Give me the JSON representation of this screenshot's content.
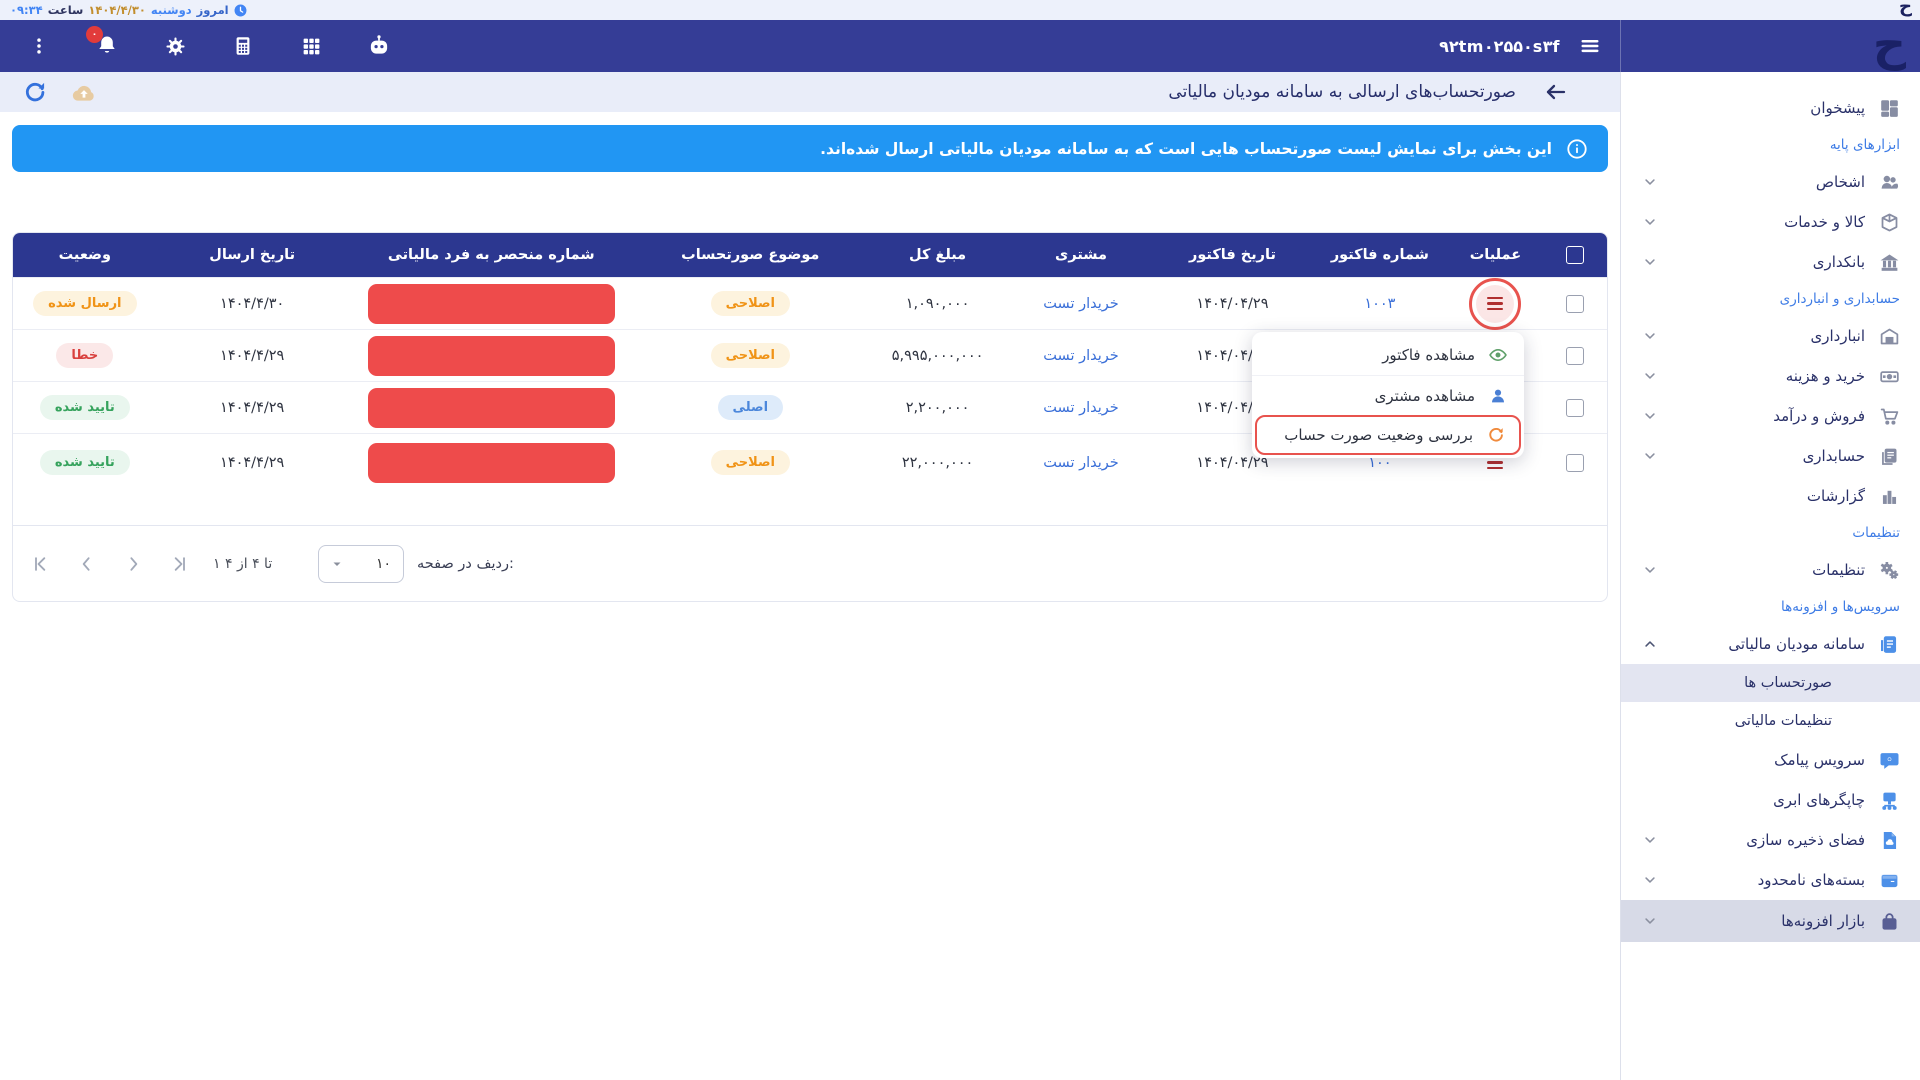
{
  "topstrip": {
    "today_label": "امروز",
    "weekday": "دوشنبه",
    "date": "۱۴۰۴/۴/۳۰",
    "hour_label": "ساعت",
    "time": "۰۹:۳۴"
  },
  "brand": {
    "logo_glyph": "ح"
  },
  "navbar": {
    "account_id": "۹۲tm۰۲۵۵۰s۳f",
    "notifications_badge": "۰"
  },
  "page": {
    "title": "صورتحساب‌های ارسالی به سامانه مودیان مالیاتی",
    "banner_text": "این بخش برای نمایش لیست صورتحساب هایی است که به سامانه مودیان مالیاتی ارسال شده‌اند."
  },
  "table": {
    "columns": [
      "عملیات",
      "شماره فاکتور",
      "تاریخ فاکتور",
      "مشتری",
      "مبلغ کل",
      "موضوع صورتحساب",
      "شماره منحصر به فرد مالیاتی",
      "تاریخ ارسال",
      "وضعیت"
    ],
    "rows": [
      {
        "invoice_no": "۱۰۰۳",
        "invoice_date": "۱۴۰۴/۰۴/۲۹",
        "customer": "خریدار تست",
        "total": "۱,۰۹۰,۰۰۰",
        "subject": {
          "label": "اصلاحی",
          "kind": "warn"
        },
        "tax_uid_redacted": true,
        "send_date": "۱۴۰۴/۴/۳۰",
        "status": {
          "label": "ارسال شده",
          "kind": "warn"
        },
        "ops": "circled"
      },
      {
        "invoice_no": "",
        "invoice_date": "۱۴۰۴/۰۴/۲۹",
        "customer": "خریدار تست",
        "total": "۵,۹۹۵,۰۰۰,۰۰۰",
        "subject": {
          "label": "اصلاحی",
          "kind": "warn"
        },
        "tax_uid_redacted": true,
        "send_date": "۱۴۰۴/۴/۲۹",
        "status": {
          "label": "خطا",
          "kind": "error"
        },
        "ops": "plain"
      },
      {
        "invoice_no": "",
        "invoice_date": "۱۴۰۴/۰۴/۲۹",
        "customer": "خریدار تست",
        "total": "۲,۲۰۰,۰۰۰",
        "subject": {
          "label": "اصلی",
          "kind": "info"
        },
        "tax_uid_redacted": true,
        "send_date": "۱۴۰۴/۴/۲۹",
        "status": {
          "label": "تایید شده",
          "kind": "success"
        },
        "ops": "plain"
      },
      {
        "invoice_no": "۱۰۰",
        "invoice_date": "۱۴۰۴/۰۴/۲۹",
        "customer": "خریدار تست",
        "total": "۲۲,۰۰۰,۰۰۰",
        "subject": {
          "label": "اصلاحی",
          "kind": "warn"
        },
        "tax_uid_redacted": true,
        "send_date": "۱۴۰۴/۴/۲۹",
        "status": {
          "label": "تایید شده",
          "kind": "success"
        },
        "ops": "plain",
        "tall": true
      }
    ]
  },
  "context_menu": {
    "items": [
      {
        "label": "مشاهده فاکتور",
        "icon": "eye"
      },
      {
        "label": "مشاهده مشتری",
        "icon": "person"
      },
      {
        "label": "بررسی وضعیت صورت حساب",
        "icon": "refresh-orange",
        "highlighted": true
      }
    ]
  },
  "pagination": {
    "rows_per_page_label": "ردیف در صفحه:",
    "rows_per_page": "۱۰",
    "range_text": "۱ تا ۴ از ۴"
  },
  "sidebar": {
    "items": [
      {
        "type": "item",
        "label": "پیشخوان",
        "icon": "dashboard",
        "chevron": false,
        "tone": "gray"
      },
      {
        "type": "section",
        "label": "ابزارهای پایه"
      },
      {
        "type": "item",
        "label": "اشخاص",
        "icon": "people",
        "chevron": "down",
        "tone": "gray"
      },
      {
        "type": "item",
        "label": "کالا و خدمات",
        "icon": "box",
        "chevron": "down",
        "tone": "gray"
      },
      {
        "type": "item",
        "label": "بانکداری",
        "icon": "bank",
        "chevron": "down",
        "tone": "gray"
      },
      {
        "type": "section",
        "label": "حسابداری و انبارداری"
      },
      {
        "type": "item",
        "label": "انبارداری",
        "icon": "warehouse",
        "chevron": "down",
        "tone": "gray"
      },
      {
        "type": "item",
        "label": "خرید و هزینه",
        "icon": "purchase",
        "chevron": "down",
        "tone": "gray"
      },
      {
        "type": "item",
        "label": "فروش و درآمد",
        "icon": "cart",
        "chevron": "down",
        "tone": "gray"
      },
      {
        "type": "item",
        "label": "حسابداری",
        "icon": "ledger",
        "chevron": "down",
        "tone": "gray"
      },
      {
        "type": "item",
        "label": "گزارشات",
        "icon": "chart",
        "chevron": false,
        "tone": "gray"
      },
      {
        "type": "section",
        "label": "تنظیمات"
      },
      {
        "type": "item",
        "label": "تنظیمات",
        "icon": "gears",
        "chevron": "down",
        "tone": "gray"
      },
      {
        "type": "section",
        "label": "سرویس‌ها و افزونه‌ها"
      },
      {
        "type": "item",
        "label": "سامانه مودیان مالیاتی",
        "icon": "taxdoc",
        "chevron": "up",
        "tone": "blue"
      },
      {
        "type": "subitem",
        "label": "صورتحساب ها",
        "selected": true
      },
      {
        "type": "subitem",
        "label": "تنظیمات مالیاتی"
      },
      {
        "type": "item",
        "label": "سرویس پیامک",
        "icon": "sms",
        "chevron": false,
        "tone": "blue"
      },
      {
        "type": "item",
        "label": "چاپگرهای ابری",
        "icon": "printer",
        "chevron": false,
        "tone": "blue"
      },
      {
        "type": "item",
        "label": "فضای ذخیره سازی",
        "icon": "storage",
        "chevron": "down",
        "tone": "blue"
      },
      {
        "type": "item",
        "label": "بسته‌های نامحدود",
        "icon": "package",
        "chevron": "down",
        "tone": "blue"
      },
      {
        "type": "item",
        "label": "بازار افزونه‌ها",
        "icon": "bag",
        "chevron": "down",
        "tone": "navy",
        "market": true
      }
    ]
  },
  "colors": {
    "navy_bar": "#353D96",
    "table_header": "#2C3790",
    "banner_blue": "#2196F3",
    "redacted_red": "#EE4B4B",
    "annotation_red": "#E8534E",
    "link_blue": "#3A6FD8"
  }
}
